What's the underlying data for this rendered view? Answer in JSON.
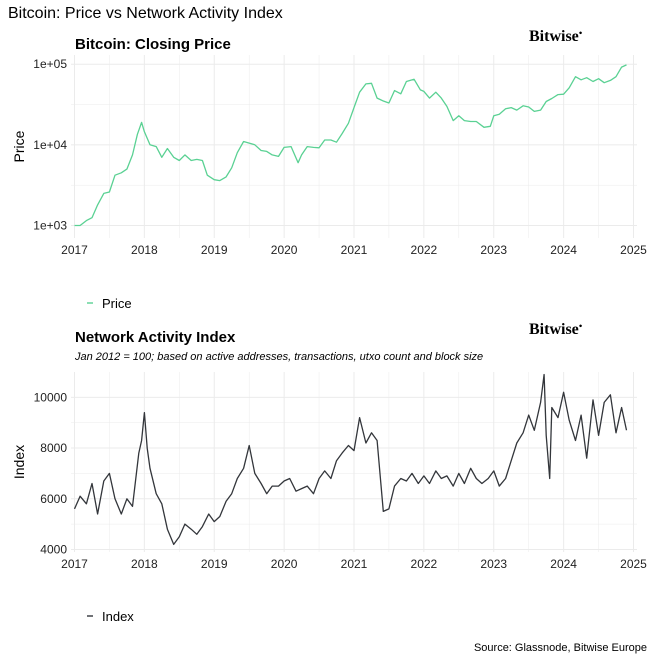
{
  "page_title": "Bitcoin: Price vs Network Activity Index",
  "logo_text": "Bitwise",
  "source": "Source: Glassnode, Bitwise Europe",
  "colors": {
    "price": "#5ad193",
    "index": "#33363b",
    "grid": "#ebebeb"
  },
  "chart_data": [
    {
      "type": "line",
      "title": "Bitcoin: Closing Price",
      "ylabel": "Price",
      "y_scale": "log10",
      "ylim": [
        700,
        130000
      ],
      "xlim": [
        2016.95,
        2025.05
      ],
      "x_ticks": [
        2017,
        2018,
        2019,
        2020,
        2021,
        2022,
        2023,
        2024,
        2025
      ],
      "x_tick_labels": [
        "2017",
        "2018",
        "2019",
        "2020",
        "2021",
        "2022",
        "2023",
        "2024",
        "2025"
      ],
      "y_ticks": [
        1000,
        10000,
        100000
      ],
      "y_tick_labels": [
        "1e+03",
        "1e+04",
        "1e+05"
      ],
      "series": [
        {
          "name": "Price",
          "x": [
            2017.0,
            2017.08,
            2017.17,
            2017.25,
            2017.33,
            2017.42,
            2017.5,
            2017.58,
            2017.67,
            2017.75,
            2017.83,
            2017.9,
            2017.96,
            2018.0,
            2018.08,
            2018.17,
            2018.25,
            2018.33,
            2018.42,
            2018.5,
            2018.58,
            2018.67,
            2018.75,
            2018.83,
            2018.9,
            2019.0,
            2019.08,
            2019.17,
            2019.25,
            2019.33,
            2019.42,
            2019.5,
            2019.58,
            2019.67,
            2019.75,
            2019.83,
            2019.92,
            2020.0,
            2020.1,
            2020.2,
            2020.25,
            2020.33,
            2020.42,
            2020.5,
            2020.58,
            2020.67,
            2020.75,
            2020.83,
            2020.92,
            2021.0,
            2021.08,
            2021.17,
            2021.25,
            2021.33,
            2021.42,
            2021.5,
            2021.58,
            2021.67,
            2021.75,
            2021.86,
            2021.95,
            2022.0,
            2022.08,
            2022.17,
            2022.25,
            2022.33,
            2022.42,
            2022.5,
            2022.58,
            2022.67,
            2022.75,
            2022.86,
            2022.95,
            2023.0,
            2023.08,
            2023.17,
            2023.25,
            2023.33,
            2023.42,
            2023.5,
            2023.58,
            2023.67,
            2023.75,
            2023.83,
            2023.92,
            2024.0,
            2024.08,
            2024.17,
            2024.25,
            2024.33,
            2024.42,
            2024.5,
            2024.58,
            2024.67,
            2024.75,
            2024.83,
            2024.9
          ],
          "y": [
            1000,
            1000,
            1150,
            1250,
            1800,
            2500,
            2600,
            4200,
            4500,
            5000,
            7500,
            13500,
            19000,
            14500,
            10000,
            9500,
            7000,
            9000,
            7000,
            6400,
            7500,
            6400,
            6600,
            6400,
            4200,
            3700,
            3600,
            4000,
            5200,
            8000,
            11000,
            10500,
            10000,
            8500,
            8300,
            7500,
            7200,
            9300,
            9500,
            6000,
            7500,
            9500,
            9300,
            9200,
            11500,
            11500,
            10800,
            13800,
            18500,
            29000,
            45000,
            57000,
            58000,
            38000,
            35000,
            33000,
            47000,
            43000,
            61000,
            65000,
            48000,
            46000,
            38000,
            45000,
            38000,
            30000,
            20000,
            23000,
            20000,
            19500,
            19500,
            16500,
            17000,
            23000,
            24000,
            28000,
            29000,
            27000,
            30500,
            29500,
            26000,
            27000,
            34500,
            37500,
            42000,
            42500,
            51000,
            70000,
            64000,
            68000,
            61000,
            66000,
            59000,
            63000,
            70000,
            92000,
            98000
          ]
        }
      ]
    },
    {
      "type": "line",
      "title": "Network Activity Index",
      "subtitle": "Jan 2012 = 100; based on active addresses, transactions, utxo count and block size",
      "ylabel": "Index",
      "ylim": [
        3900,
        11000
      ],
      "xlim": [
        2016.95,
        2025.05
      ],
      "x_ticks": [
        2017,
        2018,
        2019,
        2020,
        2021,
        2022,
        2023,
        2024,
        2025
      ],
      "x_tick_labels": [
        "2017",
        "2018",
        "2019",
        "2020",
        "2021",
        "2022",
        "2023",
        "2024",
        "2025"
      ],
      "y_ticks": [
        4000,
        6000,
        8000,
        10000
      ],
      "y_tick_labels": [
        "4000",
        "6000",
        "8000",
        "10000"
      ],
      "series": [
        {
          "name": "Index",
          "x": [
            2017.0,
            2017.08,
            2017.17,
            2017.25,
            2017.33,
            2017.42,
            2017.5,
            2017.58,
            2017.67,
            2017.75,
            2017.83,
            2017.92,
            2017.96,
            2018.0,
            2018.04,
            2018.08,
            2018.17,
            2018.25,
            2018.33,
            2018.42,
            2018.5,
            2018.58,
            2018.67,
            2018.75,
            2018.83,
            2018.92,
            2019.0,
            2019.08,
            2019.17,
            2019.25,
            2019.33,
            2019.42,
            2019.5,
            2019.58,
            2019.67,
            2019.75,
            2019.83,
            2019.92,
            2020.0,
            2020.08,
            2020.17,
            2020.25,
            2020.33,
            2020.42,
            2020.5,
            2020.58,
            2020.67,
            2020.75,
            2020.83,
            2020.92,
            2021.0,
            2021.08,
            2021.17,
            2021.25,
            2021.33,
            2021.42,
            2021.5,
            2021.58,
            2021.67,
            2021.75,
            2021.83,
            2021.92,
            2022.0,
            2022.08,
            2022.17,
            2022.25,
            2022.33,
            2022.42,
            2022.5,
            2022.58,
            2022.67,
            2022.75,
            2022.83,
            2022.92,
            2023.0,
            2023.08,
            2023.17,
            2023.25,
            2023.33,
            2023.42,
            2023.5,
            2023.58,
            2023.67,
            2023.72,
            2023.75,
            2023.8,
            2023.83,
            2023.92,
            2024.0,
            2024.08,
            2024.17,
            2024.25,
            2024.33,
            2024.42,
            2024.5,
            2024.58,
            2024.67,
            2024.75,
            2024.83,
            2024.9
          ],
          "y": [
            5600,
            6100,
            5800,
            6600,
            5400,
            6700,
            7000,
            6000,
            5400,
            6000,
            5700,
            7800,
            8300,
            9400,
            8000,
            7200,
            6200,
            5800,
            4800,
            4200,
            4500,
            5000,
            4800,
            4600,
            4900,
            5400,
            5100,
            5300,
            5900,
            6200,
            6800,
            7200,
            8100,
            7000,
            6600,
            6200,
            6500,
            6500,
            6700,
            6800,
            6300,
            6400,
            6500,
            6200,
            6800,
            7100,
            6800,
            7500,
            7800,
            8100,
            7900,
            9200,
            8200,
            8600,
            8300,
            5500,
            5600,
            6500,
            6800,
            6700,
            7000,
            6600,
            6900,
            6600,
            7100,
            6800,
            6900,
            6500,
            7000,
            6600,
            7200,
            6800,
            6600,
            6800,
            7100,
            6500,
            6800,
            7500,
            8200,
            8600,
            9300,
            8700,
            9800,
            10900,
            8500,
            6800,
            9600,
            9200,
            10200,
            9100,
            8300,
            9300,
            7600,
            9900,
            8500,
            9800,
            10100,
            8600,
            9600,
            8700
          ]
        }
      ]
    }
  ]
}
